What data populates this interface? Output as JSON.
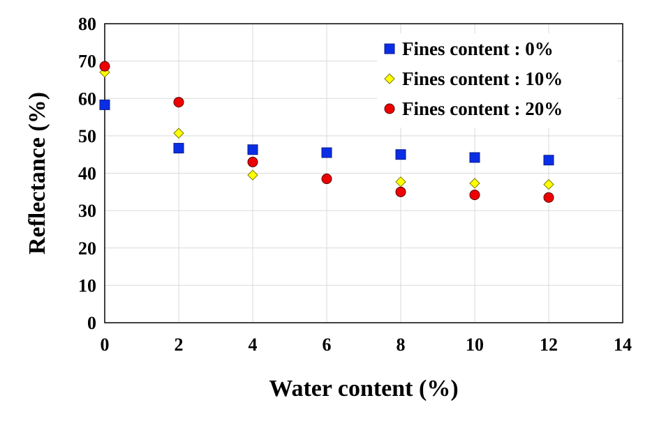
{
  "chart_data": {
    "type": "scatter",
    "title": "",
    "xlabel": "Water content (%)",
    "ylabel": "Reflectance (%)",
    "xlim": [
      0,
      14
    ],
    "ylim": [
      0,
      80
    ],
    "x_ticks": [
      0,
      2,
      4,
      6,
      8,
      10,
      12,
      14
    ],
    "y_ticks": [
      0,
      10,
      20,
      30,
      40,
      50,
      60,
      70,
      80
    ],
    "x_tick_labels": [
      "0",
      "2",
      "4",
      "6",
      "8",
      "10",
      "12",
      "14"
    ],
    "y_tick_labels": [
      "0",
      "10",
      "20",
      "30",
      "40",
      "50",
      "60",
      "70",
      "80"
    ],
    "grid": true,
    "legend_position": "top-right",
    "series": [
      {
        "name": "Fines content : 0%",
        "marker": "square",
        "color": "#0a2ee6",
        "x": [
          0,
          2,
          4,
          6,
          8,
          10,
          12
        ],
        "y": [
          58.3,
          46.7,
          46.3,
          45.5,
          45.0,
          44.2,
          43.5
        ]
      },
      {
        "name": "Fines content : 10%",
        "marker": "diamond",
        "color": "#ffff00",
        "x": [
          0,
          2,
          4,
          6,
          8,
          10,
          12
        ],
        "y": [
          67.0,
          50.7,
          39.5,
          38.5,
          37.7,
          37.3,
          37.0
        ]
      },
      {
        "name": "Fines content : 20%",
        "marker": "circle",
        "color": "#ee0000",
        "x": [
          0,
          2,
          4,
          6,
          8,
          10,
          12
        ],
        "y": [
          68.6,
          59.0,
          43.0,
          38.5,
          35.0,
          34.2,
          33.5
        ]
      }
    ]
  }
}
